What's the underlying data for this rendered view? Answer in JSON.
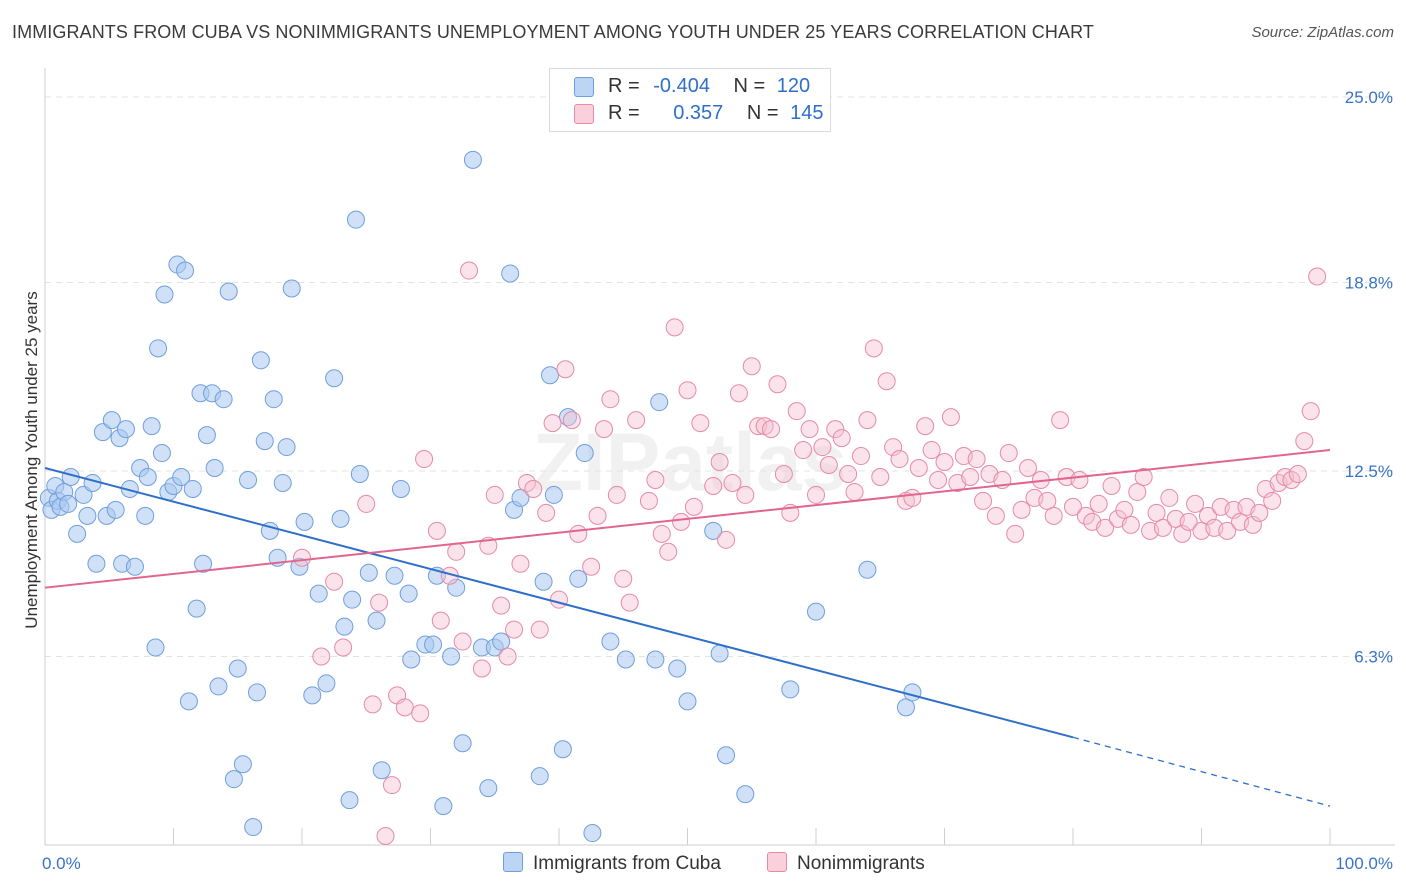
{
  "title": "IMMIGRANTS FROM CUBA VS NONIMMIGRANTS UNEMPLOYMENT AMONG YOUTH UNDER 25 YEARS CORRELATION CHART",
  "source": "Source: ZipAtlas.com",
  "watermark": "ZIPatlas",
  "legend": {
    "rows": [
      {
        "r_label": "R =",
        "r_value": "-0.404",
        "n_label": "N =",
        "n_value": "120",
        "color": "#aac8f0"
      },
      {
        "r_label": "R =",
        "r_value": "0.357",
        "n_label": "N =",
        "n_value": "145",
        "color": "#f5b3c8"
      }
    ]
  },
  "bottom_legend": [
    {
      "label": "Immigrants from Cuba",
      "color": "#aac8f0"
    },
    {
      "label": "Nonimmigrants",
      "color": "#f5b3c8"
    }
  ],
  "chart_data": {
    "type": "scatter",
    "ylabel": "Unemployment Among Youth under 25 years",
    "xlim": [
      0,
      100
    ],
    "ylim": [
      0,
      25
    ],
    "x_tick_labels": [
      "0.0%",
      "100.0%"
    ],
    "y_ticks": [
      6.3,
      12.5,
      18.8,
      25.0
    ],
    "y_tick_labels": [
      "6.3%",
      "12.5%",
      "18.8%",
      "25.0%"
    ],
    "grid": true,
    "colors": {
      "cuba_fill": "#aac8f0",
      "cuba_stroke": "#6f9fdc",
      "cuba_line": "#2f6fc8",
      "non_fill": "#f5c0d1",
      "non_stroke": "#e68aa8",
      "non_line": "#e0668f",
      "tick_label": "#3a72c8"
    },
    "series": [
      {
        "name": "Immigrants from Cuba",
        "trend": {
          "x0": 0,
          "y0": 12.6,
          "x1": 80,
          "y1": 3.6,
          "dash_to_x": 100,
          "dash_to_y": 1.3
        },
        "points": [
          [
            0.3,
            11.6
          ],
          [
            0.5,
            11.2
          ],
          [
            0.8,
            12.0
          ],
          [
            1.0,
            11.5
          ],
          [
            1.2,
            11.3
          ],
          [
            1.5,
            11.8
          ],
          [
            1.8,
            11.4
          ],
          [
            2.0,
            12.3
          ],
          [
            2.5,
            10.4
          ],
          [
            3.0,
            11.7
          ],
          [
            3.3,
            11.0
          ],
          [
            3.7,
            12.1
          ],
          [
            4.0,
            9.4
          ],
          [
            4.5,
            13.8
          ],
          [
            4.8,
            11.0
          ],
          [
            5.2,
            14.2
          ],
          [
            5.5,
            11.2
          ],
          [
            5.8,
            13.6
          ],
          [
            6.0,
            9.4
          ],
          [
            6.3,
            13.9
          ],
          [
            6.6,
            11.9
          ],
          [
            7.0,
            9.3
          ],
          [
            7.4,
            12.6
          ],
          [
            7.8,
            11.0
          ],
          [
            8.0,
            12.3
          ],
          [
            8.3,
            14.0
          ],
          [
            8.6,
            6.6
          ],
          [
            8.8,
            16.6
          ],
          [
            9.1,
            13.1
          ],
          [
            9.3,
            18.4
          ],
          [
            9.6,
            11.8
          ],
          [
            10.0,
            12.0
          ],
          [
            10.3,
            19.4
          ],
          [
            10.6,
            12.3
          ],
          [
            10.9,
            19.2
          ],
          [
            11.2,
            4.8
          ],
          [
            11.5,
            11.9
          ],
          [
            11.8,
            7.9
          ],
          [
            12.1,
            15.1
          ],
          [
            12.3,
            9.4
          ],
          [
            12.6,
            13.7
          ],
          [
            13.0,
            15.1
          ],
          [
            13.2,
            12.6
          ],
          [
            13.5,
            5.3
          ],
          [
            13.9,
            14.9
          ],
          [
            14.3,
            18.5
          ],
          [
            14.7,
            2.2
          ],
          [
            15.0,
            5.9
          ],
          [
            15.4,
            2.7
          ],
          [
            15.8,
            12.2
          ],
          [
            16.2,
            0.6
          ],
          [
            16.5,
            5.1
          ],
          [
            16.8,
            16.2
          ],
          [
            17.1,
            13.5
          ],
          [
            17.5,
            10.5
          ],
          [
            17.8,
            14.9
          ],
          [
            18.1,
            9.6
          ],
          [
            18.5,
            12.1
          ],
          [
            18.8,
            13.3
          ],
          [
            19.2,
            18.6
          ],
          [
            19.8,
            9.3
          ],
          [
            20.2,
            10.8
          ],
          [
            20.8,
            5.0
          ],
          [
            21.3,
            8.4
          ],
          [
            21.9,
            5.4
          ],
          [
            22.5,
            15.6
          ],
          [
            23.0,
            10.9
          ],
          [
            23.3,
            7.3
          ],
          [
            23.7,
            1.5
          ],
          [
            23.9,
            8.2
          ],
          [
            24.2,
            20.9
          ],
          [
            24.5,
            12.4
          ],
          [
            25.2,
            9.1
          ],
          [
            25.8,
            7.5
          ],
          [
            26.2,
            2.5
          ],
          [
            27.2,
            9.0
          ],
          [
            27.7,
            11.9
          ],
          [
            28.3,
            8.4
          ],
          [
            28.5,
            6.2
          ],
          [
            29.6,
            6.7
          ],
          [
            30.2,
            6.7
          ],
          [
            30.5,
            9.0
          ],
          [
            31.0,
            1.3
          ],
          [
            31.6,
            6.3
          ],
          [
            32.0,
            8.6
          ],
          [
            32.5,
            3.4
          ],
          [
            33.3,
            22.9
          ],
          [
            34.0,
            6.6
          ],
          [
            34.5,
            1.9
          ],
          [
            35.0,
            6.6
          ],
          [
            35.5,
            6.8
          ],
          [
            36.2,
            19.1
          ],
          [
            36.5,
            11.2
          ],
          [
            37.0,
            11.6
          ],
          [
            38.5,
            2.3
          ],
          [
            38.8,
            8.8
          ],
          [
            39.3,
            15.7
          ],
          [
            39.6,
            11.7
          ],
          [
            40.3,
            3.2
          ],
          [
            40.7,
            14.3
          ],
          [
            41.5,
            8.9
          ],
          [
            42.0,
            13.1
          ],
          [
            42.6,
            0.4
          ],
          [
            44.0,
            6.8
          ],
          [
            45.2,
            6.2
          ],
          [
            47.5,
            6.2
          ],
          [
            47.8,
            14.8
          ],
          [
            49.2,
            5.9
          ],
          [
            50.0,
            4.8
          ],
          [
            52.0,
            10.5
          ],
          [
            52.5,
            6.4
          ],
          [
            53.0,
            3.0
          ],
          [
            54.5,
            1.7
          ],
          [
            58.0,
            5.2
          ],
          [
            60.0,
            7.8
          ],
          [
            64.0,
            9.2
          ],
          [
            67.0,
            4.6
          ],
          [
            67.5,
            5.1
          ]
        ]
      },
      {
        "name": "Nonimmigrants",
        "trend": {
          "x0": 0,
          "y0": 8.6,
          "x1": 100,
          "y1": 13.2
        },
        "points": [
          [
            20.0,
            9.6
          ],
          [
            21.5,
            6.3
          ],
          [
            22.5,
            8.8
          ],
          [
            23.2,
            6.6
          ],
          [
            25.0,
            11.4
          ],
          [
            25.5,
            4.7
          ],
          [
            26.0,
            8.1
          ],
          [
            26.5,
            0.3
          ],
          [
            27.0,
            2.0
          ],
          [
            27.4,
            5.0
          ],
          [
            28.0,
            4.6
          ],
          [
            29.2,
            4.4
          ],
          [
            29.5,
            12.9
          ],
          [
            30.5,
            10.5
          ],
          [
            30.8,
            7.5
          ],
          [
            31.5,
            9.0
          ],
          [
            32.0,
            9.8
          ],
          [
            32.5,
            6.8
          ],
          [
            33.0,
            19.2
          ],
          [
            34.0,
            5.9
          ],
          [
            34.5,
            10.0
          ],
          [
            35.0,
            11.7
          ],
          [
            35.5,
            8.0
          ],
          [
            36.0,
            6.3
          ],
          [
            36.5,
            7.2
          ],
          [
            37.0,
            9.4
          ],
          [
            37.5,
            12.1
          ],
          [
            38.0,
            11.9
          ],
          [
            38.5,
            7.2
          ],
          [
            39.0,
            11.1
          ],
          [
            39.5,
            14.1
          ],
          [
            40.0,
            8.2
          ],
          [
            40.5,
            15.9
          ],
          [
            41.0,
            14.2
          ],
          [
            41.5,
            10.4
          ],
          [
            42.5,
            9.3
          ],
          [
            43.0,
            11.0
          ],
          [
            43.5,
            13.9
          ],
          [
            44.0,
            14.9
          ],
          [
            44.5,
            11.7
          ],
          [
            45.0,
            8.9
          ],
          [
            45.5,
            8.1
          ],
          [
            46.0,
            14.2
          ],
          [
            47.0,
            11.5
          ],
          [
            47.5,
            12.2
          ],
          [
            48.0,
            10.4
          ],
          [
            48.5,
            9.8
          ],
          [
            49.0,
            17.3
          ],
          [
            49.5,
            10.8
          ],
          [
            50.0,
            15.2
          ],
          [
            50.5,
            11.3
          ],
          [
            51.0,
            14.1
          ],
          [
            52.0,
            12.0
          ],
          [
            52.5,
            12.8
          ],
          [
            53.0,
            10.2
          ],
          [
            53.5,
            12.1
          ],
          [
            54.0,
            15.1
          ],
          [
            54.5,
            11.7
          ],
          [
            55.0,
            16.0
          ],
          [
            55.5,
            14.0
          ],
          [
            56.0,
            14.0
          ],
          [
            56.5,
            13.9
          ],
          [
            57.0,
            15.4
          ],
          [
            57.5,
            12.4
          ],
          [
            58.0,
            11.1
          ],
          [
            58.5,
            14.5
          ],
          [
            59.0,
            13.2
          ],
          [
            59.5,
            13.9
          ],
          [
            60.0,
            11.7
          ],
          [
            60.5,
            13.3
          ],
          [
            61.0,
            12.7
          ],
          [
            61.5,
            13.9
          ],
          [
            62.0,
            13.6
          ],
          [
            62.5,
            12.4
          ],
          [
            63.0,
            11.8
          ],
          [
            63.5,
            13.0
          ],
          [
            64.0,
            14.2
          ],
          [
            64.5,
            16.6
          ],
          [
            65.0,
            12.3
          ],
          [
            65.5,
            15.5
          ],
          [
            66.0,
            13.3
          ],
          [
            66.5,
            12.9
          ],
          [
            67.0,
            11.5
          ],
          [
            67.5,
            11.6
          ],
          [
            68.0,
            12.6
          ],
          [
            68.5,
            14.0
          ],
          [
            69.0,
            13.2
          ],
          [
            69.5,
            12.2
          ],
          [
            70.0,
            12.8
          ],
          [
            70.5,
            14.3
          ],
          [
            71.0,
            12.1
          ],
          [
            71.5,
            13.0
          ],
          [
            72.0,
            12.3
          ],
          [
            72.5,
            12.9
          ],
          [
            73.0,
            11.5
          ],
          [
            73.5,
            12.4
          ],
          [
            74.0,
            11.0
          ],
          [
            74.5,
            12.2
          ],
          [
            75.0,
            13.1
          ],
          [
            75.5,
            10.4
          ],
          [
            76.0,
            11.2
          ],
          [
            76.5,
            12.6
          ],
          [
            77.0,
            11.6
          ],
          [
            77.5,
            12.2
          ],
          [
            78.0,
            11.5
          ],
          [
            78.5,
            11.0
          ],
          [
            79.0,
            14.2
          ],
          [
            79.5,
            12.3
          ],
          [
            80.0,
            11.3
          ],
          [
            80.5,
            12.2
          ],
          [
            81.0,
            11.0
          ],
          [
            81.5,
            10.8
          ],
          [
            82.0,
            11.4
          ],
          [
            82.5,
            10.6
          ],
          [
            83.0,
            12.0
          ],
          [
            83.5,
            10.9
          ],
          [
            84.0,
            11.2
          ],
          [
            84.5,
            10.7
          ],
          [
            85.0,
            11.8
          ],
          [
            85.5,
            12.3
          ],
          [
            86.0,
            10.5
          ],
          [
            86.5,
            11.1
          ],
          [
            87.0,
            10.6
          ],
          [
            87.5,
            11.6
          ],
          [
            88.0,
            10.9
          ],
          [
            88.5,
            10.4
          ],
          [
            89.0,
            10.8
          ],
          [
            89.5,
            11.4
          ],
          [
            90.0,
            10.5
          ],
          [
            90.5,
            11.0
          ],
          [
            91.0,
            10.6
          ],
          [
            91.5,
            11.3
          ],
          [
            92.0,
            10.5
          ],
          [
            92.5,
            11.2
          ],
          [
            93.0,
            10.8
          ],
          [
            93.5,
            11.3
          ],
          [
            94.0,
            10.7
          ],
          [
            94.5,
            11.1
          ],
          [
            95.0,
            11.9
          ],
          [
            95.5,
            11.5
          ],
          [
            96.0,
            12.1
          ],
          [
            96.5,
            12.3
          ],
          [
            97.0,
            12.2
          ],
          [
            97.5,
            12.4
          ],
          [
            98.0,
            13.5
          ],
          [
            98.5,
            14.5
          ],
          [
            99.0,
            19.0
          ]
        ]
      }
    ]
  }
}
